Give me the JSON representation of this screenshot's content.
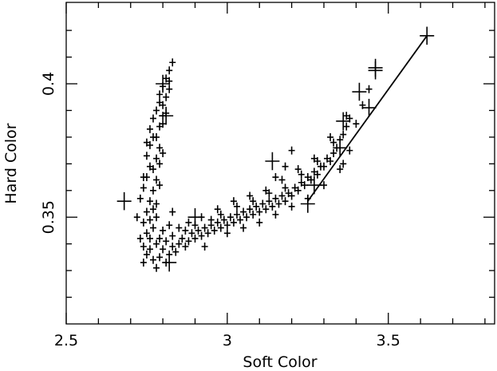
{
  "chart_data": {
    "type": "scatter",
    "title": "",
    "xlabel": "Soft Color",
    "ylabel": "Hard Color",
    "xlim": [
      2.5,
      3.83
    ],
    "ylim": [
      0.31,
      0.4305
    ],
    "x_ticks_major": [
      2.5,
      3,
      3.5
    ],
    "x_ticks_major_labels": [
      "2.5",
      "3",
      "3.5"
    ],
    "y_ticks_major": [
      0.35,
      0.4
    ],
    "y_ticks_major_labels": [
      "0.35",
      "0.4"
    ],
    "x_ticks_minor": [
      2.6,
      2.7,
      2.8,
      2.9,
      3.1,
      3.2,
      3.3,
      3.4,
      3.6,
      3.7,
      3.8
    ],
    "y_ticks_minor": [
      0.32,
      0.33,
      0.34,
      0.36,
      0.37,
      0.38,
      0.39,
      0.41,
      0.42
    ],
    "grid": false,
    "legend": "none",
    "marker": "plus",
    "mark_color": "#000000",
    "series": [
      {
        "values_note": "",
        "points": [
          [
            2.74,
            0.333
          ],
          [
            2.75,
            0.336
          ],
          [
            2.77,
            0.334
          ],
          [
            2.78,
            0.331
          ],
          [
            2.79,
            0.335
          ],
          [
            2.8,
            0.338
          ],
          [
            2.81,
            0.333
          ],
          [
            2.82,
            0.336
          ],
          [
            2.83,
            0.339
          ],
          [
            2.84,
            0.337
          ],
          [
            2.76,
            0.338
          ],
          [
            2.78,
            0.34
          ],
          [
            2.79,
            0.342
          ],
          [
            2.81,
            0.341
          ],
          [
            2.83,
            0.343
          ],
          [
            2.85,
            0.34
          ],
          [
            2.86,
            0.342
          ],
          [
            2.87,
            0.339
          ],
          [
            2.88,
            0.341
          ],
          [
            2.89,
            0.344
          ],
          [
            2.9,
            0.342
          ],
          [
            2.91,
            0.345
          ],
          [
            2.92,
            0.343
          ],
          [
            2.93,
            0.346
          ],
          [
            2.94,
            0.344
          ],
          [
            2.95,
            0.347
          ],
          [
            2.96,
            0.345
          ],
          [
            2.97,
            0.348
          ],
          [
            2.98,
            0.346
          ],
          [
            2.99,
            0.349
          ],
          [
            3.0,
            0.347
          ],
          [
            3.01,
            0.35
          ],
          [
            3.02,
            0.348
          ],
          [
            3.03,
            0.351
          ],
          [
            3.04,
            0.349
          ],
          [
            3.05,
            0.352
          ],
          [
            3.06,
            0.35
          ],
          [
            3.07,
            0.353
          ],
          [
            3.08,
            0.351
          ],
          [
            3.09,
            0.354
          ],
          [
            3.1,
            0.352
          ],
          [
            3.11,
            0.355
          ],
          [
            3.12,
            0.353
          ],
          [
            3.13,
            0.356
          ],
          [
            3.14,
            0.354
          ],
          [
            3.15,
            0.357
          ],
          [
            3.16,
            0.355
          ],
          [
            3.17,
            0.358
          ],
          [
            3.18,
            0.356
          ],
          [
            3.19,
            0.359
          ],
          [
            3.2,
            0.358
          ],
          [
            3.21,
            0.361
          ],
          [
            3.22,
            0.36
          ],
          [
            3.23,
            0.363
          ],
          [
            3.24,
            0.362
          ],
          [
            3.25,
            0.365
          ],
          [
            3.26,
            0.364
          ],
          [
            3.27,
            0.367
          ],
          [
            3.28,
            0.366
          ],
          [
            3.29,
            0.369
          ],
          [
            3.3,
            0.369
          ],
          [
            3.31,
            0.372
          ],
          [
            3.32,
            0.371
          ],
          [
            3.33,
            0.374
          ],
          [
            3.34,
            0.376
          ],
          [
            3.35,
            0.379
          ],
          [
            3.36,
            0.381
          ],
          [
            3.37,
            0.384
          ],
          [
            3.38,
            0.387
          ],
          [
            3.4,
            0.385
          ],
          [
            2.98,
            0.351
          ],
          [
            3.03,
            0.354
          ],
          [
            3.08,
            0.356
          ],
          [
            3.13,
            0.359
          ],
          [
            3.18,
            0.361
          ],
          [
            3.23,
            0.366
          ],
          [
            3.28,
            0.371
          ],
          [
            3.33,
            0.378
          ],
          [
            2.95,
            0.349
          ],
          [
            3.0,
            0.344
          ],
          [
            2.9,
            0.347
          ],
          [
            2.87,
            0.345
          ],
          [
            2.93,
            0.339
          ],
          [
            3.05,
            0.346
          ],
          [
            3.1,
            0.348
          ],
          [
            3.15,
            0.351
          ],
          [
            3.2,
            0.354
          ],
          [
            3.25,
            0.357
          ],
          [
            3.3,
            0.362
          ],
          [
            3.35,
            0.368
          ],
          [
            2.73,
            0.342
          ],
          [
            2.74,
            0.348
          ],
          [
            2.75,
            0.352
          ],
          [
            2.73,
            0.357
          ],
          [
            2.74,
            0.361
          ],
          [
            2.75,
            0.365
          ],
          [
            2.76,
            0.369
          ],
          [
            2.75,
            0.373
          ],
          [
            2.76,
            0.377
          ],
          [
            2.77,
            0.38
          ],
          [
            2.76,
            0.356
          ],
          [
            2.77,
            0.36
          ],
          [
            2.78,
            0.364
          ],
          [
            2.77,
            0.368
          ],
          [
            2.78,
            0.372
          ],
          [
            2.79,
            0.376
          ],
          [
            2.78,
            0.38
          ],
          [
            2.79,
            0.384
          ],
          [
            2.8,
            0.388
          ],
          [
            2.8,
            0.392
          ],
          [
            2.79,
            0.396
          ],
          [
            2.8,
            0.399
          ],
          [
            2.81,
            0.402
          ],
          [
            2.82,
            0.405
          ],
          [
            2.81,
            0.395
          ],
          [
            2.82,
            0.398
          ],
          [
            2.8,
            0.385
          ],
          [
            2.79,
            0.37
          ],
          [
            2.78,
            0.355
          ],
          [
            2.77,
            0.346
          ],
          [
            2.75,
            0.344
          ],
          [
            2.74,
            0.339
          ],
          [
            2.76,
            0.349
          ],
          [
            2.77,
            0.353
          ],
          [
            2.74,
            0.365
          ],
          [
            2.75,
            0.378
          ],
          [
            2.76,
            0.383
          ],
          [
            2.77,
            0.387
          ],
          [
            2.78,
            0.39
          ],
          [
            2.79,
            0.393
          ],
          [
            2.83,
            0.408
          ],
          [
            2.82,
            0.401
          ],
          [
            2.81,
            0.389
          ],
          [
            2.8,
            0.374
          ],
          [
            2.79,
            0.362
          ],
          [
            2.78,
            0.35
          ],
          [
            2.76,
            0.342
          ],
          [
            2.8,
            0.345
          ],
          [
            2.82,
            0.347
          ],
          [
            2.85,
            0.346
          ],
          [
            2.88,
            0.348
          ],
          [
            2.92,
            0.35
          ],
          [
            2.97,
            0.353
          ],
          [
            3.02,
            0.356
          ],
          [
            3.07,
            0.358
          ],
          [
            3.12,
            0.36
          ],
          [
            3.17,
            0.364
          ],
          [
            3.22,
            0.368
          ],
          [
            3.27,
            0.372
          ],
          [
            3.32,
            0.38
          ],
          [
            3.37,
            0.388
          ],
          [
            3.42,
            0.392
          ],
          [
            3.44,
            0.398
          ],
          [
            3.2,
            0.375
          ],
          [
            3.18,
            0.369
          ],
          [
            3.15,
            0.365
          ],
          [
            3.38,
            0.375
          ],
          [
            3.36,
            0.37
          ],
          [
            2.83,
            0.352
          ],
          [
            2.72,
            0.35
          ]
        ]
      },
      {
        "name_note": "",
        "large_points": [
          [
            2.68,
            0.356
          ],
          [
            2.8,
            0.4
          ],
          [
            2.81,
            0.388
          ],
          [
            2.82,
            0.333
          ],
          [
            3.14,
            0.371
          ],
          [
            3.25,
            0.355
          ],
          [
            3.27,
            0.362
          ],
          [
            3.36,
            0.386
          ],
          [
            3.41,
            0.397
          ],
          [
            3.44,
            0.391
          ],
          [
            3.46,
            0.405
          ],
          [
            3.46,
            0.406
          ],
          [
            3.35,
            0.376
          ],
          [
            3.62,
            0.418
          ],
          [
            2.9,
            0.35
          ]
        ]
      }
    ],
    "fit_line": {
      "x": [
        3.25,
        3.62
      ],
      "y": [
        0.356,
        0.418
      ]
    }
  }
}
